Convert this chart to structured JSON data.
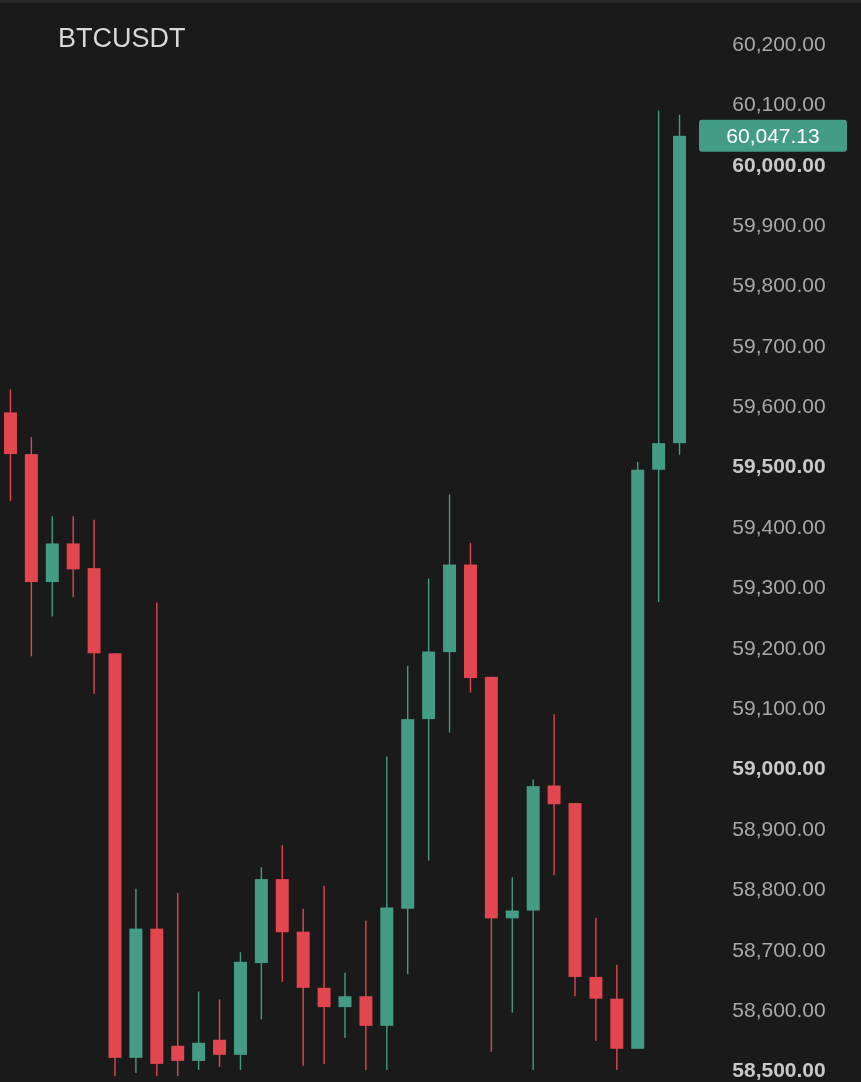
{
  "chart_data": {
    "type": "candlestick",
    "title": "BTCUSDT",
    "categories": [
      null,
      null,
      null,
      null,
      null,
      null,
      null,
      null,
      null,
      null,
      null,
      null,
      null,
      null,
      null,
      null,
      null,
      null,
      null,
      null,
      null,
      null,
      null,
      null,
      null,
      null,
      null,
      null,
      null,
      null,
      null,
      null,
      null
    ],
    "ohlc": [
      [
        59589,
        59627,
        59442,
        59520
      ],
      [
        59520,
        59548,
        59185,
        59308
      ],
      [
        59308,
        59417,
        59251,
        59372
      ],
      [
        59372,
        59417,
        59283,
        59329
      ],
      [
        59331,
        59411,
        59123,
        59190
      ],
      [
        59190,
        59190,
        58490,
        58520
      ],
      [
        58520,
        58800,
        58495,
        58734
      ],
      [
        58734,
        59274,
        58490,
        58510
      ],
      [
        58540,
        58793,
        58490,
        58515
      ],
      [
        58515,
        58630,
        58500,
        58545
      ],
      [
        58550,
        58617,
        58505,
        58525
      ],
      [
        58525,
        58695,
        58500,
        58679
      ],
      [
        58677,
        58836,
        58584,
        58816
      ],
      [
        58816,
        58872,
        58646,
        58728
      ],
      [
        58729,
        58767,
        58507,
        58636
      ],
      [
        58636,
        58805,
        58510,
        58604
      ],
      [
        58604,
        58661,
        58553,
        58622
      ],
      [
        58622,
        58747,
        58500,
        58573
      ],
      [
        58573,
        59019,
        58500,
        58769
      ],
      [
        58767,
        59169,
        58659,
        59081
      ],
      [
        59081,
        59314,
        58847,
        59193
      ],
      [
        59192,
        59453,
        59059,
        59337
      ],
      [
        59337,
        59373,
        59125,
        59149
      ],
      [
        59151,
        59151,
        58530,
        58751
      ],
      [
        58751,
        58819,
        58595,
        58764
      ],
      [
        58764,
        58981,
        58500,
        58970
      ],
      [
        58971,
        59089,
        58823,
        58940
      ],
      [
        58942,
        58942,
        58622,
        58654
      ],
      [
        58654,
        58752,
        58548,
        58618
      ],
      [
        58618,
        58674,
        58500,
        58535
      ],
      [
        58535,
        59507,
        58535,
        59494
      ],
      [
        59494,
        60089,
        59275,
        59538
      ],
      [
        59538,
        60082,
        59519,
        60047.13
      ]
    ],
    "colors": [
      "#e2464f",
      "#e2464f",
      "#459c84",
      "#e2464f",
      "#e2464f",
      "#e2464f",
      "#459c84",
      "#e2464f",
      "#e2464f",
      "#459c84",
      "#e2464f",
      "#459c84",
      "#459c84",
      "#e2464f",
      "#e2464f",
      "#e2464f",
      "#459c84",
      "#e2464f",
      "#459c84",
      "#459c84",
      "#459c84",
      "#459c84",
      "#e2464f",
      "#e2464f",
      "#459c84",
      "#459c84",
      "#e2464f",
      "#e2464f",
      "#e2464f",
      "#e2464f",
      "#459c84",
      "#459c84",
      "#459c84"
    ],
    "ylim": [
      58480,
      60272
    ],
    "yticks": [
      {
        "value": 58500,
        "label": "58,500.00"
      },
      {
        "value": 58600,
        "label": "58,600.00"
      },
      {
        "value": 58700,
        "label": "58,700.00"
      },
      {
        "value": 58800,
        "label": "58,800.00"
      },
      {
        "value": 58900,
        "label": "58,900.00"
      },
      {
        "value": 59000,
        "label": "59,000.00"
      },
      {
        "value": 59100,
        "label": "59,100.00"
      },
      {
        "value": 59200,
        "label": "59,200.00"
      },
      {
        "value": 59300,
        "label": "59,300.00"
      },
      {
        "value": 59400,
        "label": "59,400.00"
      },
      {
        "value": 59500,
        "label": "59,500.00"
      },
      {
        "value": 59600,
        "label": "59,600.00"
      },
      {
        "value": 59700,
        "label": "59,700.00"
      },
      {
        "value": 59800,
        "label": "59,800.00"
      },
      {
        "value": 59900,
        "label": "59,900.00"
      },
      {
        "value": 60000,
        "label": "60,000.00"
      },
      {
        "value": 60100,
        "label": "60,100.00"
      },
      {
        "value": 60200,
        "label": "60,200.00"
      }
    ],
    "tick_labels": "y",
    "annotations": [
      "60,047.13"
    ]
  }
}
